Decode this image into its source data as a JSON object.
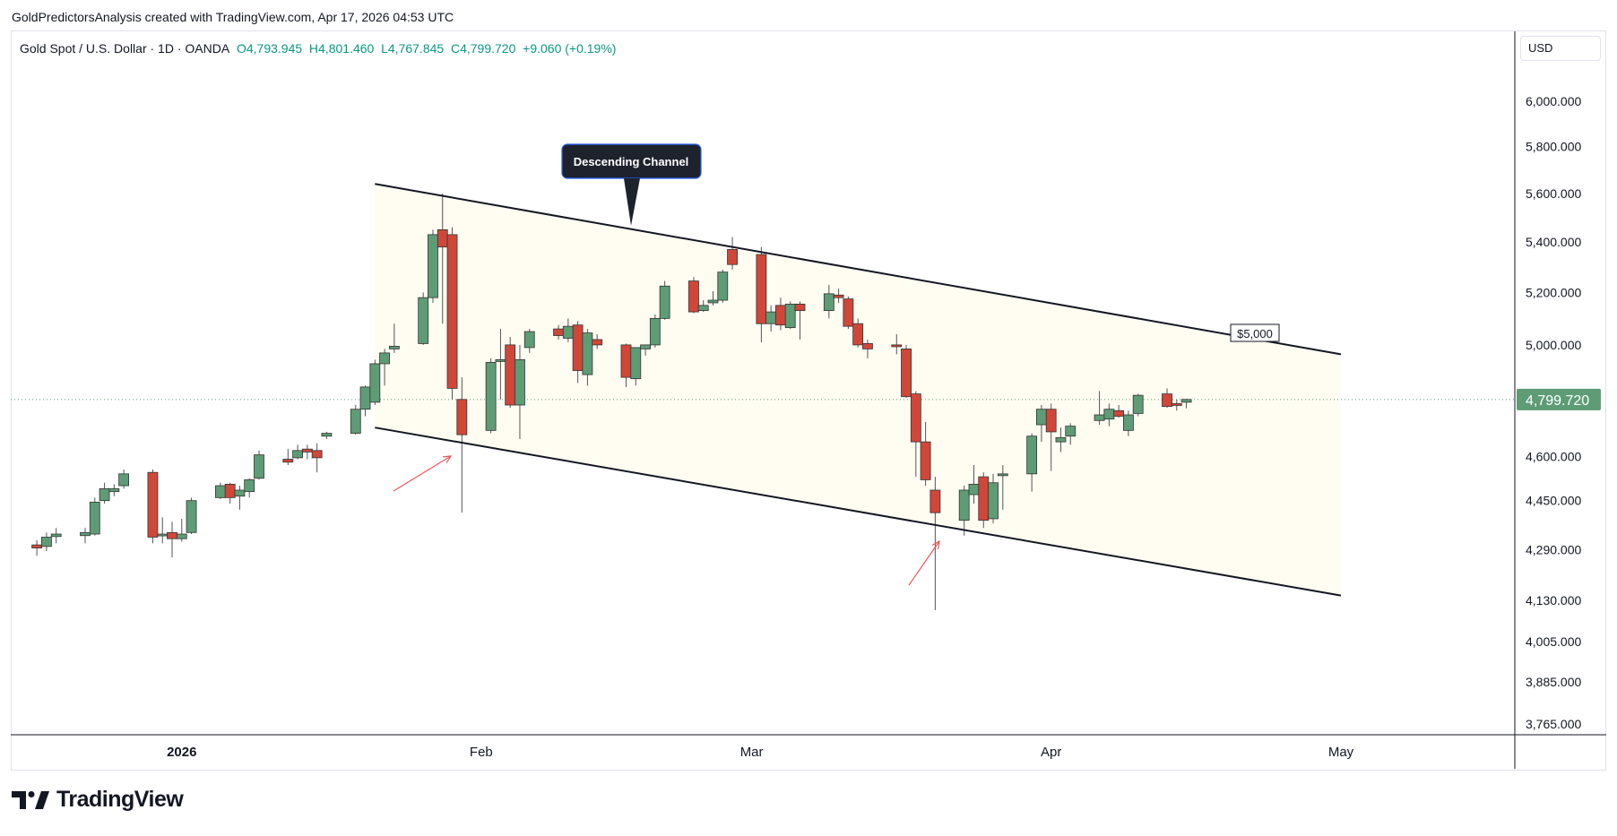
{
  "header": {
    "caption": "GoldPredictorsAnalysis created with TradingView.com, Apr 17, 2026 04:53 UTC"
  },
  "legend": {
    "symbol": "Gold Spot / U.S. Dollar · 1D · OANDA",
    "open": "O4,793.945",
    "high": "H4,801.460",
    "low": "L4,767.845",
    "close": "C4,799.720",
    "change": "+9.060 (+0.19%)"
  },
  "currency": "USD",
  "brand": {
    "name": "TradingView",
    "logo_icon": "tradingview-logo-icon"
  },
  "colors": {
    "up": "#5e9c76",
    "down": "#d0473a",
    "channel_fill": "#fffcf2",
    "price_tag": "#5e9c76",
    "arrow": "#f0555a"
  },
  "chart_data": {
    "type": "candlestick",
    "title": "Gold Spot / U.S. Dollar · 1D · OANDA",
    "x_axis_labels": [
      {
        "label": "2026",
        "date": "2026-01-01"
      },
      {
        "label": "Feb",
        "date": "2026-02-01"
      },
      {
        "label": "Mar",
        "date": "2026-03-01"
      },
      {
        "label": "Apr",
        "date": "2026-04-01"
      },
      {
        "label": "May",
        "date": "2026-05-01"
      }
    ],
    "y_axis_labels": [
      "6,000.000",
      "5,800.000",
      "5,600.000",
      "5,400.000",
      "5,200.000",
      "5,000.000",
      "4,600.000",
      "4,450.000",
      "4,290.000",
      "4,130.000",
      "4,005.000",
      "3,885.000",
      "3,765.000"
    ],
    "y_scale": "log",
    "last_price": 4799.72,
    "last_price_label": "4,799.720",
    "candles": [
      {
        "date": "2025-12-17",
        "o": 4305,
        "h": 4320,
        "l": 4270,
        "c": 4295
      },
      {
        "date": "2025-12-18",
        "o": 4300,
        "h": 4345,
        "l": 4285,
        "c": 4330
      },
      {
        "date": "2025-12-19",
        "o": 4332,
        "h": 4360,
        "l": 4310,
        "c": 4340
      },
      {
        "date": "2025-12-22",
        "o": 4335,
        "h": 4360,
        "l": 4310,
        "c": 4345
      },
      {
        "date": "2025-12-23",
        "o": 4340,
        "h": 4460,
        "l": 4335,
        "c": 4445
      },
      {
        "date": "2025-12-24",
        "o": 4450,
        "h": 4510,
        "l": 4440,
        "c": 4490
      },
      {
        "date": "2025-12-25",
        "o": 4480,
        "h": 4505,
        "l": 4465,
        "c": 4490
      },
      {
        "date": "2025-12-26",
        "o": 4500,
        "h": 4555,
        "l": 4490,
        "c": 4540
      },
      {
        "date": "2025-12-29",
        "o": 4545,
        "h": 4555,
        "l": 4310,
        "c": 4330
      },
      {
        "date": "2025-12-30",
        "o": 4335,
        "h": 4395,
        "l": 4310,
        "c": 4340
      },
      {
        "date": "2025-12-31",
        "o": 4345,
        "h": 4380,
        "l": 4265,
        "c": 4325
      },
      {
        "date": "2026-01-01",
        "o": 4325,
        "h": 4390,
        "l": 4315,
        "c": 4340
      },
      {
        "date": "2026-01-02",
        "o": 4345,
        "h": 4460,
        "l": 4340,
        "c": 4450
      },
      {
        "date": "2026-01-05",
        "o": 4460,
        "h": 4510,
        "l": 4455,
        "c": 4500
      },
      {
        "date": "2026-01-06",
        "o": 4505,
        "h": 4510,
        "l": 4440,
        "c": 4460
      },
      {
        "date": "2026-01-07",
        "o": 4465,
        "h": 4500,
        "l": 4420,
        "c": 4485
      },
      {
        "date": "2026-01-08",
        "o": 4480,
        "h": 4525,
        "l": 4460,
        "c": 4520
      },
      {
        "date": "2026-01-09",
        "o": 4525,
        "h": 4620,
        "l": 4520,
        "c": 4605
      },
      {
        "date": "2026-01-12",
        "o": 4590,
        "h": 4625,
        "l": 4570,
        "c": 4580
      },
      {
        "date": "2026-01-13",
        "o": 4595,
        "h": 4640,
        "l": 4590,
        "c": 4620
      },
      {
        "date": "2026-01-14",
        "o": 4625,
        "h": 4640,
        "l": 4590,
        "c": 4615
      },
      {
        "date": "2026-01-15",
        "o": 4620,
        "h": 4645,
        "l": 4545,
        "c": 4595
      },
      {
        "date": "2026-01-16",
        "o": 4670,
        "h": 4685,
        "l": 4660,
        "c": 4680
      },
      {
        "date": "2026-01-19",
        "o": 4680,
        "h": 4780,
        "l": 4675,
        "c": 4765
      },
      {
        "date": "2026-01-20",
        "o": 4765,
        "h": 4850,
        "l": 4740,
        "c": 4845
      },
      {
        "date": "2026-01-21",
        "o": 4790,
        "h": 4945,
        "l": 4780,
        "c": 4930
      },
      {
        "date": "2026-01-22",
        "o": 4930,
        "h": 4985,
        "l": 4850,
        "c": 4970
      },
      {
        "date": "2026-01-23",
        "o": 4985,
        "h": 5080,
        "l": 4970,
        "c": 4995
      },
      {
        "date": "2026-01-26",
        "o": 5005,
        "h": 5200,
        "l": 5000,
        "c": 5180
      },
      {
        "date": "2026-01-27",
        "o": 5180,
        "h": 5450,
        "l": 5160,
        "c": 5430
      },
      {
        "date": "2026-01-28",
        "o": 5450,
        "h": 5600,
        "l": 5080,
        "c": 5380
      },
      {
        "date": "2026-01-29",
        "o": 5430,
        "h": 5460,
        "l": 4800,
        "c": 4840
      },
      {
        "date": "2026-01-30",
        "o": 4800,
        "h": 4880,
        "l": 4410,
        "c": 4675
      },
      {
        "date": "2026-02-02",
        "o": 4690,
        "h": 4950,
        "l": 4680,
        "c": 4935
      },
      {
        "date": "2026-02-03",
        "o": 4940,
        "h": 5060,
        "l": 4800,
        "c": 4945
      },
      {
        "date": "2026-02-04",
        "o": 5000,
        "h": 5030,
        "l": 4770,
        "c": 4780
      },
      {
        "date": "2026-02-05",
        "o": 4780,
        "h": 5000,
        "l": 4660,
        "c": 4945
      },
      {
        "date": "2026-02-06",
        "o": 4990,
        "h": 5060,
        "l": 4970,
        "c": 5050
      },
      {
        "date": "2026-02-09",
        "o": 5060,
        "h": 5075,
        "l": 5020,
        "c": 5035
      },
      {
        "date": "2026-02-10",
        "o": 5025,
        "h": 5100,
        "l": 5010,
        "c": 5070
      },
      {
        "date": "2026-02-11",
        "o": 5075,
        "h": 5090,
        "l": 4860,
        "c": 4905
      },
      {
        "date": "2026-02-12",
        "o": 4890,
        "h": 5060,
        "l": 4850,
        "c": 5045
      },
      {
        "date": "2026-02-13",
        "o": 5020,
        "h": 5040,
        "l": 4985,
        "c": 5000
      },
      {
        "date": "2026-02-16",
        "o": 5000,
        "h": 5005,
        "l": 4845,
        "c": 4880
      },
      {
        "date": "2026-02-17",
        "o": 4875,
        "h": 4990,
        "l": 4850,
        "c": 4990
      },
      {
        "date": "2026-02-18",
        "o": 4985,
        "h": 5000,
        "l": 4960,
        "c": 5000
      },
      {
        "date": "2026-02-19",
        "o": 5000,
        "h": 5115,
        "l": 4990,
        "c": 5100
      },
      {
        "date": "2026-02-20",
        "o": 5100,
        "h": 5245,
        "l": 5095,
        "c": 5225
      },
      {
        "date": "2026-02-23",
        "o": 5245,
        "h": 5260,
        "l": 5120,
        "c": 5125
      },
      {
        "date": "2026-02-24",
        "o": 5130,
        "h": 5170,
        "l": 5125,
        "c": 5150
      },
      {
        "date": "2026-02-25",
        "o": 5160,
        "h": 5205,
        "l": 5150,
        "c": 5170
      },
      {
        "date": "2026-02-26",
        "o": 5170,
        "h": 5290,
        "l": 5160,
        "c": 5280
      },
      {
        "date": "2026-02-27",
        "o": 5370,
        "h": 5420,
        "l": 5290,
        "c": 5310
      },
      {
        "date": "2026-03-02",
        "o": 5350,
        "h": 5380,
        "l": 5010,
        "c": 5080
      },
      {
        "date": "2026-03-03",
        "o": 5080,
        "h": 5150,
        "l": 5050,
        "c": 5125
      },
      {
        "date": "2026-03-04",
        "o": 5150,
        "h": 5180,
        "l": 5055,
        "c": 5075
      },
      {
        "date": "2026-03-05",
        "o": 5065,
        "h": 5165,
        "l": 5060,
        "c": 5155
      },
      {
        "date": "2026-03-06",
        "o": 5155,
        "h": 5165,
        "l": 5020,
        "c": 5130
      },
      {
        "date": "2026-03-09",
        "o": 5130,
        "h": 5230,
        "l": 5100,
        "c": 5195
      },
      {
        "date": "2026-03-10",
        "o": 5190,
        "h": 5215,
        "l": 5160,
        "c": 5180
      },
      {
        "date": "2026-03-11",
        "o": 5175,
        "h": 5185,
        "l": 5060,
        "c": 5070
      },
      {
        "date": "2026-03-12",
        "o": 5080,
        "h": 5100,
        "l": 4990,
        "c": 5000
      },
      {
        "date": "2026-03-13",
        "o": 5005,
        "h": 5020,
        "l": 4950,
        "c": 4985
      },
      {
        "date": "2026-03-16",
        "o": 5000,
        "h": 5040,
        "l": 4965,
        "c": 4995
      },
      {
        "date": "2026-03-17",
        "o": 4985,
        "h": 5000,
        "l": 4805,
        "c": 4810
      },
      {
        "date": "2026-03-18",
        "o": 4820,
        "h": 4830,
        "l": 4530,
        "c": 4650
      },
      {
        "date": "2026-03-19",
        "o": 4650,
        "h": 4720,
        "l": 4500,
        "c": 4520
      },
      {
        "date": "2026-03-20",
        "o": 4485,
        "h": 4530,
        "l": 4100,
        "c": 4410
      },
      {
        "date": "2026-03-23",
        "o": 4385,
        "h": 4500,
        "l": 4335,
        "c": 4485
      },
      {
        "date": "2026-03-24",
        "o": 4470,
        "h": 4570,
        "l": 4440,
        "c": 4505
      },
      {
        "date": "2026-03-25",
        "o": 4530,
        "h": 4545,
        "l": 4360,
        "c": 4385
      },
      {
        "date": "2026-03-26",
        "o": 4390,
        "h": 4540,
        "l": 4375,
        "c": 4510
      },
      {
        "date": "2026-03-27",
        "o": 4540,
        "h": 4570,
        "l": 4420,
        "c": 4540
      },
      {
        "date": "2026-03-30",
        "o": 4540,
        "h": 4680,
        "l": 4480,
        "c": 4670
      },
      {
        "date": "2026-03-31",
        "o": 4710,
        "h": 4780,
        "l": 4650,
        "c": 4765
      },
      {
        "date": "2026-04-01",
        "o": 4765,
        "h": 4785,
        "l": 4550,
        "c": 4685
      },
      {
        "date": "2026-04-02",
        "o": 4650,
        "h": 4700,
        "l": 4615,
        "c": 4665
      },
      {
        "date": "2026-04-03",
        "o": 4670,
        "h": 4715,
        "l": 4640,
        "c": 4705
      },
      {
        "date": "2026-04-06",
        "o": 4725,
        "h": 4830,
        "l": 4710,
        "c": 4745
      },
      {
        "date": "2026-04-07",
        "o": 4730,
        "h": 4785,
        "l": 4705,
        "c": 4765
      },
      {
        "date": "2026-04-08",
        "o": 4760,
        "h": 4780,
        "l": 4735,
        "c": 4740
      },
      {
        "date": "2026-04-09",
        "o": 4690,
        "h": 4760,
        "l": 4670,
        "c": 4745
      },
      {
        "date": "2026-04-10",
        "o": 4750,
        "h": 4820,
        "l": 4740,
        "c": 4815
      },
      {
        "date": "2026-04-13",
        "o": 4820,
        "h": 4840,
        "l": 4770,
        "c": 4775
      },
      {
        "date": "2026-04-14",
        "o": 4785,
        "h": 4800,
        "l": 4760,
        "c": 4780
      },
      {
        "date": "2026-04-15",
        "o": 4790,
        "h": 4802,
        "l": 4768,
        "c": 4800
      }
    ],
    "annotations": {
      "channel_label": "Descending Channel",
      "level_label": "$5,000"
    }
  }
}
